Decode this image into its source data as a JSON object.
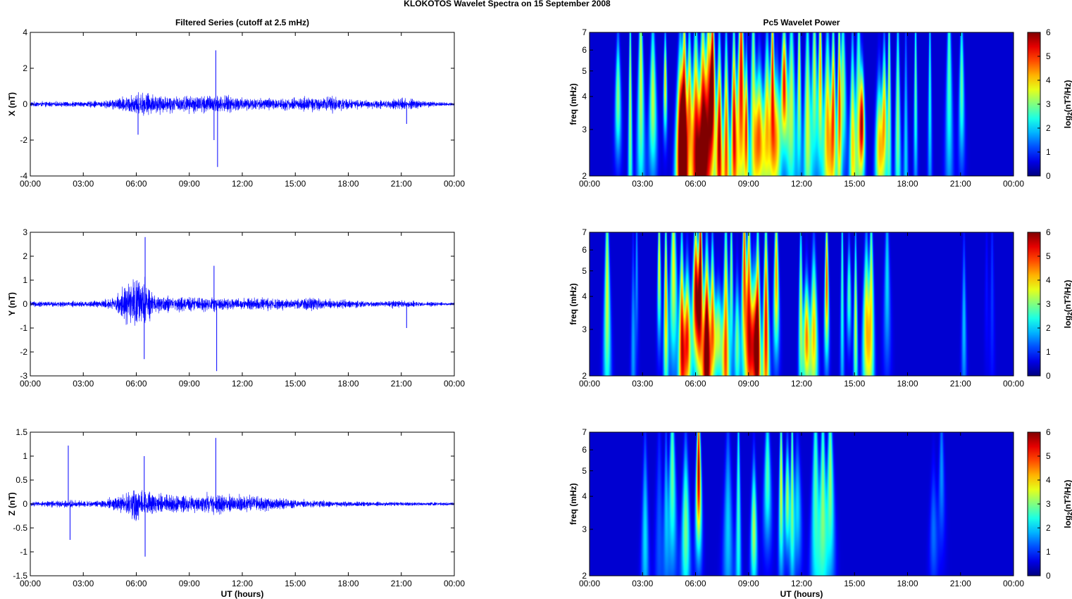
{
  "figure": {
    "suptitle": "KLOKOTOS Wavelet Spectra on 15 September 2008"
  },
  "colors": {
    "trace": "#0000ff",
    "axis": "#000000",
    "background": "#ffffff"
  },
  "chart_data": [
    {
      "type": "line",
      "title": "Filtered Series (cutoff at 2.5 mHz)",
      "xlabel": "",
      "ylabel": "X (nT)",
      "xlim": [
        0,
        24
      ],
      "ylim": [
        -4,
        4
      ],
      "xticks": [
        "00:00",
        "03:00",
        "06:00",
        "09:00",
        "12:00",
        "15:00",
        "18:00",
        "21:00",
        "00:00"
      ],
      "yticks": [
        "-4",
        "-2",
        "0",
        "2",
        "4"
      ],
      "ytick_values": [
        -4,
        -2,
        0,
        2,
        4
      ],
      "envelope": {
        "t": [
          0,
          2,
          4,
          5,
          6,
          6.5,
          7,
          8,
          9,
          10,
          10.5,
          11,
          12,
          13,
          14,
          15,
          16,
          17,
          18,
          19,
          20,
          21,
          22,
          23,
          24
        ],
        "amp": [
          0.25,
          0.25,
          0.3,
          0.6,
          1.1,
          1.2,
          0.9,
          0.8,
          0.8,
          0.9,
          0.9,
          0.8,
          0.7,
          0.6,
          0.6,
          0.6,
          0.7,
          0.8,
          0.5,
          0.4,
          0.4,
          0.6,
          0.4,
          0.2,
          0.15
        ]
      },
      "spikes": [
        {
          "t": 10.5,
          "v": 3.0
        },
        {
          "t": 10.6,
          "v": -3.5
        },
        {
          "t": 10.4,
          "v": -2.0
        },
        {
          "t": 6.1,
          "v": -1.7
        },
        {
          "t": 21.3,
          "v": -1.1
        }
      ]
    },
    {
      "type": "heatmap",
      "title": "Pc5 Wavelet Power",
      "xlabel": "",
      "ylabel": "freq (mHz)",
      "xlim": [
        0,
        24
      ],
      "ylim": [
        2,
        7
      ],
      "yscale": "log",
      "xticks": [
        "00:00",
        "03:00",
        "06:00",
        "09:00",
        "12:00",
        "15:00",
        "18:00",
        "21:00",
        "00:00"
      ],
      "yticks": [
        "2",
        "3",
        "4",
        "5",
        "6",
        "7"
      ],
      "ytick_values": [
        2,
        3,
        4,
        5,
        6,
        7
      ],
      "colorbar": {
        "label": "log2(nT2/Hz)",
        "label_base": "log",
        "label_sub": "2",
        "label_mid": "(nT",
        "label_sup": "2",
        "label_end": "/Hz)",
        "ticks": [
          "0",
          "1",
          "2",
          "3",
          "4",
          "5",
          "6"
        ],
        "tick_values": [
          0,
          1,
          2,
          3,
          4,
          5,
          6
        ],
        "colormap": "jet"
      },
      "activity": {
        "t": [
          0,
          1,
          2,
          3,
          4,
          5,
          6,
          6.5,
          7,
          8,
          9,
          10,
          11,
          12,
          13,
          14,
          15,
          16,
          17,
          18,
          19,
          20,
          21,
          22,
          23,
          24
        ],
        "level": [
          0.35,
          0.4,
          0.45,
          0.5,
          0.6,
          0.8,
          1.0,
          1.0,
          0.9,
          0.75,
          0.8,
          0.9,
          0.75,
          0.7,
          0.7,
          0.65,
          0.7,
          0.85,
          0.45,
          0.4,
          0.35,
          0.35,
          0.35,
          0.15,
          0.1,
          0.05
        ]
      }
    },
    {
      "type": "line",
      "title": "",
      "xlabel": "",
      "ylabel": "Y (nT)",
      "xlim": [
        0,
        24
      ],
      "ylim": [
        -3,
        3
      ],
      "xticks": [
        "00:00",
        "03:00",
        "06:00",
        "09:00",
        "12:00",
        "15:00",
        "18:00",
        "21:00",
        "00:00"
      ],
      "yticks": [
        "-3",
        "-2",
        "-1",
        "0",
        "1",
        "2",
        "3"
      ],
      "ytick_values": [
        -3,
        -2,
        -1,
        0,
        1,
        2,
        3
      ],
      "envelope": {
        "t": [
          0,
          2,
          4,
          4.5,
          5,
          5.5,
          6,
          6.5,
          7,
          8,
          9,
          10,
          10.5,
          11,
          12,
          13,
          14,
          15,
          16,
          17,
          18,
          19,
          20,
          21,
          22,
          23,
          24
        ],
        "amp": [
          0.2,
          0.2,
          0.25,
          0.4,
          0.8,
          1.4,
          2.0,
          1.6,
          0.7,
          0.5,
          0.5,
          0.5,
          0.6,
          0.4,
          0.4,
          0.5,
          0.4,
          0.3,
          0.5,
          0.3,
          0.3,
          0.2,
          0.2,
          0.3,
          0.2,
          0.15,
          0.1
        ]
      },
      "spikes": [
        {
          "t": 6.5,
          "v": 2.8
        },
        {
          "t": 6.45,
          "v": -2.3
        },
        {
          "t": 10.55,
          "v": -2.8
        },
        {
          "t": 10.4,
          "v": 1.6
        },
        {
          "t": 21.3,
          "v": -1.0
        }
      ]
    },
    {
      "type": "heatmap",
      "title": "",
      "xlabel": "",
      "ylabel": "freq (mHz)",
      "xlim": [
        0,
        24
      ],
      "ylim": [
        2,
        7
      ],
      "yscale": "log",
      "xticks": [
        "00:00",
        "03:00",
        "06:00",
        "09:00",
        "12:00",
        "15:00",
        "18:00",
        "21:00",
        "00:00"
      ],
      "yticks": [
        "2",
        "3",
        "4",
        "5",
        "6",
        "7"
      ],
      "ytick_values": [
        2,
        3,
        4,
        5,
        6,
        7
      ],
      "colorbar": {
        "label": "log2(nT2/Hz)",
        "label_base": "log",
        "label_sub": "2",
        "label_mid": "(nT",
        "label_sup": "2",
        "label_end": "/Hz)",
        "ticks": [
          "0",
          "1",
          "2",
          "3",
          "4",
          "5",
          "6"
        ],
        "tick_values": [
          0,
          1,
          2,
          3,
          4,
          5,
          6
        ],
        "colormap": "jet"
      },
      "activity": {
        "t": [
          0,
          1,
          2,
          3,
          4,
          5,
          6,
          6.5,
          7,
          8,
          9,
          10,
          11,
          12,
          13,
          14,
          15,
          16,
          17,
          18,
          19,
          20,
          21,
          22,
          23,
          24
        ],
        "level": [
          0.25,
          0.55,
          0.3,
          0.3,
          0.55,
          0.9,
          1.0,
          1.0,
          0.8,
          0.65,
          0.7,
          0.8,
          0.6,
          0.7,
          0.75,
          0.55,
          0.5,
          0.6,
          0.2,
          0.3,
          0.3,
          0.25,
          0.25,
          0.1,
          0.1,
          0.0
        ]
      }
    },
    {
      "type": "line",
      "title": "",
      "xlabel": "UT (hours)",
      "ylabel": "Z (nT)",
      "xlim": [
        0,
        24
      ],
      "ylim": [
        -1.5,
        1.5
      ],
      "xticks": [
        "00:00",
        "03:00",
        "06:00",
        "09:00",
        "12:00",
        "15:00",
        "18:00",
        "21:00",
        "00:00"
      ],
      "yticks": [
        "-1.5",
        "-1",
        "-0.5",
        "0",
        "0.5",
        "1",
        "1.5"
      ],
      "ytick_values": [
        -1.5,
        -1,
        -0.5,
        0,
        0.5,
        1,
        1.5
      ],
      "envelope": {
        "t": [
          0,
          1,
          2,
          3,
          4,
          5,
          6,
          6.5,
          7,
          8,
          9,
          10,
          10.5,
          11,
          12,
          13,
          14,
          15,
          16,
          17,
          18,
          19,
          20,
          21,
          22,
          23,
          24
        ],
        "amp": [
          0.08,
          0.1,
          0.15,
          0.1,
          0.12,
          0.3,
          0.6,
          0.5,
          0.35,
          0.3,
          0.3,
          0.35,
          0.35,
          0.3,
          0.3,
          0.3,
          0.2,
          0.15,
          0.15,
          0.1,
          0.1,
          0.08,
          0.08,
          0.08,
          0.06,
          0.06,
          0.05
        ]
      },
      "spikes": [
        {
          "t": 2.15,
          "v": 1.22
        },
        {
          "t": 2.25,
          "v": -0.75
        },
        {
          "t": 10.5,
          "v": 1.38
        },
        {
          "t": 6.5,
          "v": -1.1
        },
        {
          "t": 6.45,
          "v": 1.0
        }
      ]
    },
    {
      "type": "heatmap",
      "title": "",
      "xlabel": "UT (hours)",
      "ylabel": "freq (mHz)",
      "xlim": [
        0,
        24
      ],
      "ylim": [
        2,
        7
      ],
      "yscale": "log",
      "xticks": [
        "00:00",
        "03:00",
        "06:00",
        "09:00",
        "12:00",
        "15:00",
        "18:00",
        "21:00",
        "00:00"
      ],
      "yticks": [
        "2",
        "3",
        "4",
        "5",
        "6",
        "7"
      ],
      "ytick_values": [
        2,
        3,
        4,
        5,
        6,
        7
      ],
      "colorbar": {
        "label": "log2(nT2/Hz)",
        "label_base": "log",
        "label_sub": "2",
        "label_mid": "(nT",
        "label_sup": "2",
        "label_end": "/Hz)",
        "ticks": [
          "0",
          "1",
          "2",
          "3",
          "4",
          "5",
          "6"
        ],
        "tick_values": [
          0,
          1,
          2,
          3,
          4,
          5,
          6
        ],
        "colormap": "jet"
      },
      "activity": {
        "t": [
          0,
          1,
          2,
          3,
          4,
          5,
          6,
          6.5,
          7,
          8,
          9,
          10,
          11,
          12,
          13,
          14,
          15,
          16,
          17,
          18,
          19,
          20,
          21,
          22,
          23,
          24
        ],
        "level": [
          0.05,
          0.15,
          0.1,
          0.25,
          0.2,
          0.5,
          0.85,
          0.8,
          0.45,
          0.35,
          0.55,
          0.6,
          0.45,
          0.45,
          0.5,
          0.35,
          0.4,
          0.5,
          0.1,
          0.1,
          0.2,
          0.2,
          0.2,
          0.0,
          0.0,
          0.0
        ]
      }
    }
  ]
}
